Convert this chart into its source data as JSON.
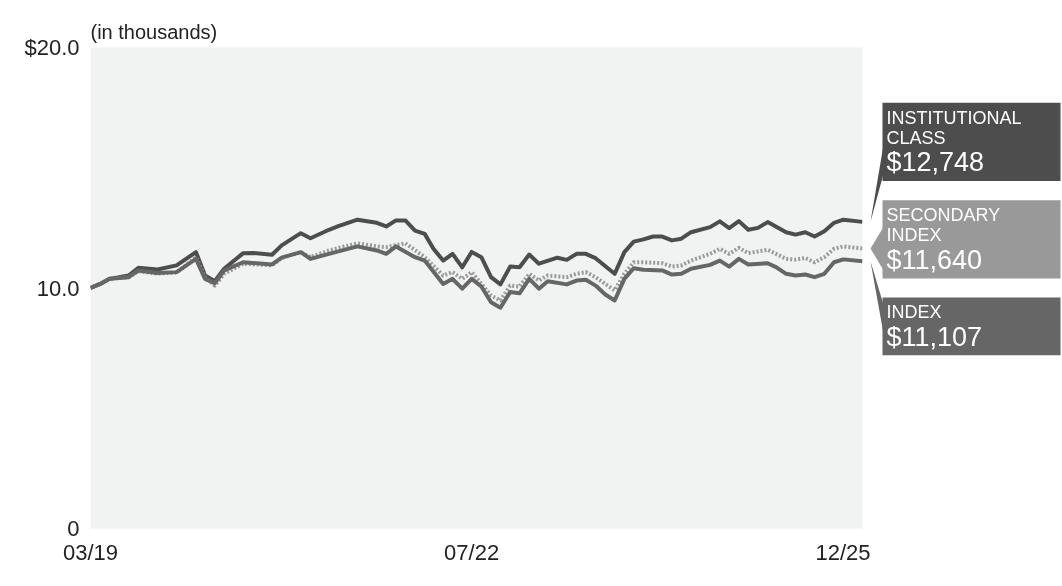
{
  "chart_data": {
    "type": "line",
    "ylabel": "(in thousands)",
    "xlim": [
      "2019-03",
      "2025-12"
    ],
    "xticks": [
      {
        "value": "2019-03",
        "label": "03/19"
      },
      {
        "value": "2022-07",
        "label": "07/22"
      },
      {
        "value": "2025-12",
        "label": "12/25"
      }
    ],
    "ylim": [
      0,
      20
    ],
    "yticks": [
      0,
      {
        "value": 10,
        "label": "10.0"
      },
      {
        "value": 20,
        "label": "$20.0"
      }
    ],
    "grid": false,
    "marker": "none",
    "annotations": [
      "$12,748",
      "$11,640",
      "$11,107"
    ],
    "series": [
      {
        "name": "INSTITUTIONAL CLASS",
        "color": "#4d4d4d",
        "line_style": "solid",
        "x": [
          "2019-03",
          "2019-04",
          "2019-05",
          "2019-07",
          "2019-08",
          "2019-10",
          "2019-12",
          "2020-02",
          "2020-03",
          "2020-04",
          "2020-05",
          "2020-07",
          "2020-08",
          "2020-10",
          "2020-11",
          "2021-01",
          "2021-02",
          "2021-04",
          "2021-05",
          "2021-07",
          "2021-09",
          "2021-10",
          "2021-11",
          "2021-12",
          "2022-01",
          "2022-02",
          "2022-03",
          "2022-04",
          "2022-05",
          "2022-06",
          "2022-07",
          "2022-08",
          "2022-09",
          "2022-10",
          "2022-11",
          "2022-12",
          "2023-01",
          "2023-02",
          "2023-04",
          "2023-05",
          "2023-06",
          "2023-07",
          "2023-08",
          "2023-10",
          "2023-11",
          "2023-12",
          "2024-01",
          "2024-02",
          "2024-03",
          "2024-04",
          "2024-05",
          "2024-06",
          "2024-08",
          "2024-09",
          "2024-10",
          "2024-11",
          "2024-12",
          "2025-01",
          "2025-02",
          "2025-04",
          "2025-05",
          "2025-06",
          "2025-07",
          "2025-08",
          "2025-09",
          "2025-10",
          "2025-12"
        ],
        "values": [
          10.0,
          10.17,
          10.38,
          10.52,
          10.84,
          10.77,
          10.94,
          11.49,
          10.52,
          10.28,
          10.8,
          11.45,
          11.46,
          11.38,
          11.77,
          12.28,
          12.07,
          12.42,
          12.57,
          12.84,
          12.71,
          12.56,
          12.81,
          12.81,
          12.39,
          12.25,
          11.63,
          11.14,
          11.42,
          10.86,
          11.5,
          11.28,
          10.45,
          10.15,
          10.89,
          10.86,
          11.39,
          11.01,
          11.26,
          11.17,
          11.42,
          11.42,
          11.24,
          10.59,
          11.49,
          11.93,
          12.02,
          12.14,
          12.14,
          11.98,
          12.05,
          12.32,
          12.53,
          12.77,
          12.49,
          12.78,
          12.42,
          12.5,
          12.74,
          12.32,
          12.22,
          12.32,
          12.14,
          12.36,
          12.71,
          12.84,
          12.75
        ]
      },
      {
        "name": "SECONDARY INDEX",
        "color": "#999999",
        "line_style": "dotted",
        "x": [
          "2019-03",
          "2019-04",
          "2019-05",
          "2019-07",
          "2019-08",
          "2019-10",
          "2019-12",
          "2020-02",
          "2020-03",
          "2020-04",
          "2020-05",
          "2020-07",
          "2020-10",
          "2020-11",
          "2021-01",
          "2021-02",
          "2021-04",
          "2021-07",
          "2021-09",
          "2021-10",
          "2021-12",
          "2022-02",
          "2022-04",
          "2022-05",
          "2022-06",
          "2022-07",
          "2022-09",
          "2022-10",
          "2022-11",
          "2022-12",
          "2023-01",
          "2023-02",
          "2023-03",
          "2023-05",
          "2023-06",
          "2023-07",
          "2023-08",
          "2023-10",
          "2023-11",
          "2023-12",
          "2024-01",
          "2024-03",
          "2024-04",
          "2024-05",
          "2024-06",
          "2024-08",
          "2024-09",
          "2024-10",
          "2024-11",
          "2024-12",
          "2025-02",
          "2025-04",
          "2025-05",
          "2025-06",
          "2025-07",
          "2025-08",
          "2025-09",
          "2025-10",
          "2025-12"
        ],
        "values": [
          10.0,
          10.17,
          10.38,
          10.45,
          10.7,
          10.6,
          10.64,
          11.28,
          10.45,
          10.1,
          10.59,
          11.01,
          10.94,
          11.26,
          11.49,
          11.28,
          11.56,
          11.86,
          11.73,
          11.7,
          11.86,
          11.28,
          10.52,
          10.66,
          10.38,
          10.66,
          9.69,
          9.48,
          10.1,
          10.06,
          10.59,
          10.31,
          10.52,
          10.45,
          10.59,
          10.66,
          10.45,
          9.9,
          10.59,
          11.07,
          11.07,
          11.03,
          10.89,
          10.94,
          11.14,
          11.42,
          11.63,
          11.42,
          11.67,
          11.45,
          11.59,
          11.21,
          11.18,
          11.25,
          11.07,
          11.28,
          11.63,
          11.73,
          11.64
        ]
      },
      {
        "name": "INDEX",
        "color": "#666666",
        "line_style": "solid",
        "x": [
          "2019-03",
          "2019-04",
          "2019-05",
          "2019-07",
          "2019-08",
          "2019-10",
          "2019-12",
          "2020-02",
          "2020-03",
          "2020-04",
          "2020-05",
          "2020-07",
          "2020-10",
          "2020-11",
          "2021-01",
          "2021-02",
          "2021-04",
          "2021-07",
          "2021-09",
          "2021-10",
          "2021-11",
          "2022-01",
          "2022-02",
          "2022-04",
          "2022-05",
          "2022-06",
          "2022-07",
          "2022-08",
          "2022-09",
          "2022-10",
          "2022-11",
          "2022-12",
          "2023-01",
          "2023-02",
          "2023-03",
          "2023-05",
          "2023-06",
          "2023-07",
          "2023-08",
          "2023-09",
          "2023-10",
          "2023-11",
          "2023-12",
          "2024-01",
          "2024-03",
          "2024-04",
          "2024-05",
          "2024-06",
          "2024-08",
          "2024-09",
          "2024-10",
          "2024-11",
          "2024-12",
          "2025-02",
          "2025-03",
          "2025-04",
          "2025-05",
          "2025-06",
          "2025-07",
          "2025-08",
          "2025-09",
          "2025-10",
          "2025-12"
        ],
        "values": [
          10.0,
          10.17,
          10.38,
          10.45,
          10.73,
          10.62,
          10.66,
          11.21,
          10.38,
          10.2,
          10.73,
          11.07,
          10.98,
          11.26,
          11.49,
          11.21,
          11.42,
          11.73,
          11.56,
          11.42,
          11.73,
          11.28,
          11.14,
          10.17,
          10.38,
          9.97,
          10.38,
          10.06,
          9.41,
          9.18,
          9.83,
          9.78,
          10.38,
          9.97,
          10.28,
          10.15,
          10.31,
          10.34,
          10.1,
          9.73,
          9.48,
          10.38,
          10.82,
          10.76,
          10.73,
          10.56,
          10.59,
          10.8,
          10.96,
          11.14,
          10.89,
          11.21,
          10.98,
          11.03,
          10.86,
          10.59,
          10.52,
          10.56,
          10.45,
          10.59,
          11.07,
          11.19,
          11.11
        ]
      }
    ]
  }
}
